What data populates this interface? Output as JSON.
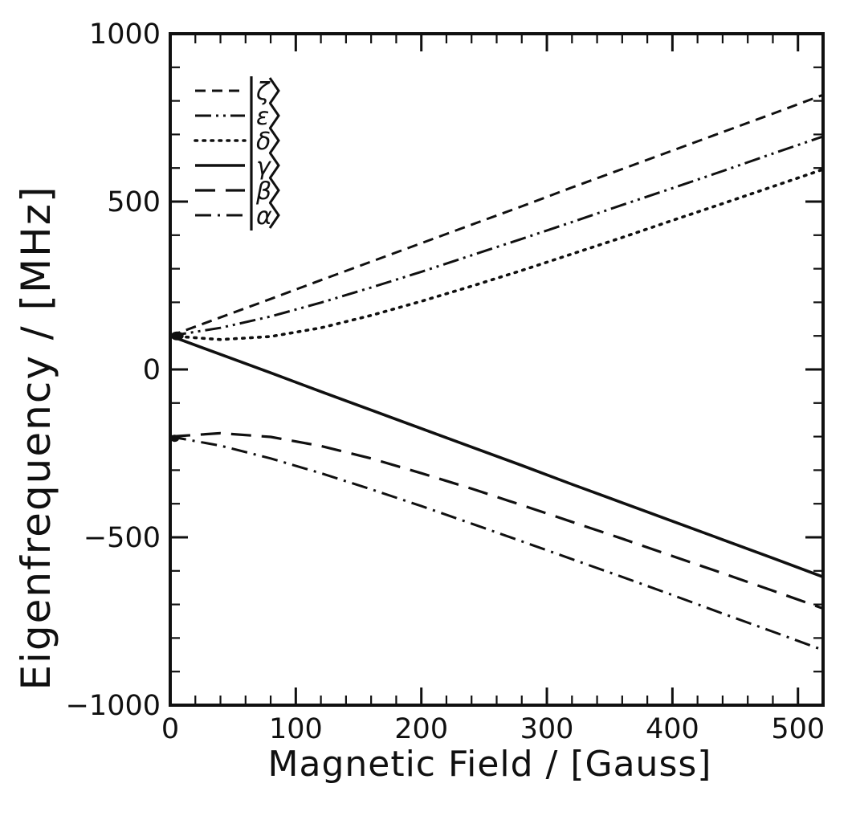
{
  "figure": {
    "background_color": "#ffffff",
    "ink_color": "#101010"
  },
  "chart_data": {
    "type": "line",
    "title": "",
    "xlabel": "Magnetic Field / [Gauss]",
    "ylabel": "Eigenfrequency / [MHz]",
    "xlim": [
      0,
      520
    ],
    "ylim": [
      -1000,
      1000
    ],
    "grid": false,
    "legend_position": "top-left",
    "x_major_ticks": [
      0,
      100,
      200,
      300,
      400,
      500
    ],
    "x_tick_labels": [
      "0",
      "100",
      "200",
      "300",
      "400",
      "500"
    ],
    "x_minor_step": 20,
    "y_major_ticks": [
      -1000,
      -500,
      0,
      500,
      1000
    ],
    "y_tick_labels": [
      "−1000",
      "−500",
      "0",
      "500",
      "1000"
    ],
    "y_minor_step": 100,
    "x": [
      0,
      40,
      80,
      120,
      160,
      200,
      240,
      280,
      320,
      360,
      400,
      440,
      480,
      520
    ],
    "series": [
      {
        "name": "zeta",
        "label": "|ζ⟩",
        "letter": "ζ",
        "style": "dashed",
        "values": [
          100,
          155,
          210,
          266,
          321,
          376,
          431,
          486,
          542,
          597,
          652,
          707,
          762,
          818
        ]
      },
      {
        "name": "epsilon",
        "label": "|ε⟩",
        "letter": "ε",
        "style": "dash-dot-dot",
        "values": [
          100,
          124,
          158,
          199,
          244,
          291,
          340,
          389,
          439,
          490,
          540,
          591,
          643,
          694
        ]
      },
      {
        "name": "delta",
        "label": "|δ⟩",
        "letter": "δ",
        "style": "dotted",
        "values": [
          100,
          89,
          98,
          124,
          161,
          203,
          248,
          295,
          344,
          393,
          444,
          494,
          545,
          596
        ]
      },
      {
        "name": "gamma",
        "label": "|γ⟩",
        "letter": "γ",
        "style": "solid",
        "values": [
          100,
          45,
          -10,
          -66,
          -121,
          -176,
          -231,
          -286,
          -342,
          -397,
          -452,
          -507,
          -562,
          -618
        ]
      },
      {
        "name": "beta",
        "label": "|β⟩",
        "letter": "β",
        "style": "long-dash",
        "values": [
          -200,
          -190,
          -201,
          -228,
          -265,
          -309,
          -355,
          -404,
          -454,
          -504,
          -556,
          -607,
          -659,
          -712
        ]
      },
      {
        "name": "alpha",
        "label": "|α⟩",
        "letter": "α",
        "style": "dash-dot",
        "values": [
          -200,
          -227,
          -265,
          -309,
          -357,
          -407,
          -459,
          -512,
          -565,
          -618,
          -672,
          -727,
          -781,
          -836
        ]
      }
    ],
    "legend_entries": [
      "|ζ⟩",
      "|ε⟩",
      "|δ⟩",
      "|γ⟩",
      "|β⟩",
      "|α⟩"
    ],
    "node_markers": [
      {
        "B": 3,
        "E": 100
      },
      {
        "B": 1,
        "E": -205
      }
    ]
  }
}
